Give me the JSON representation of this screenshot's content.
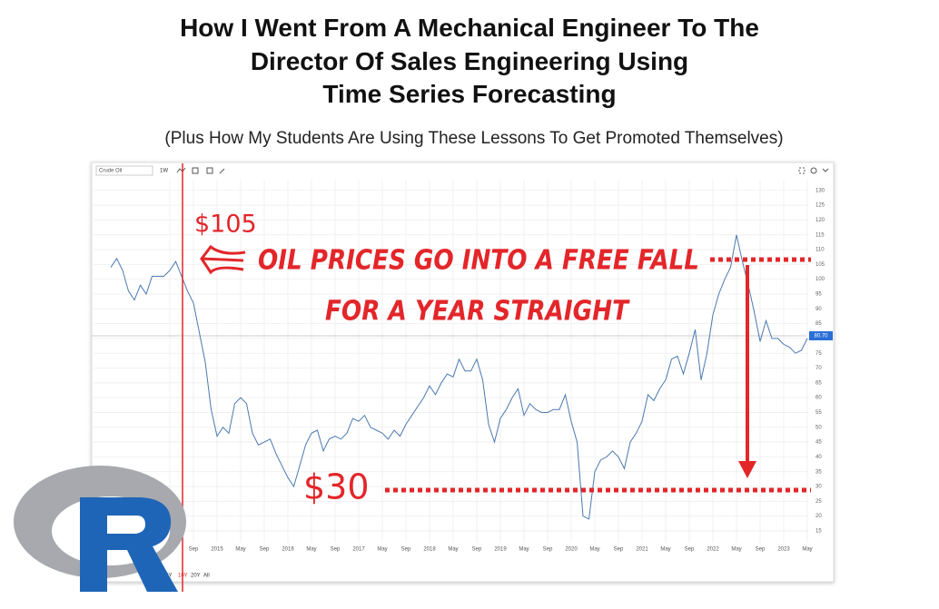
{
  "headline": [
    "How I Went From A Mechanical Engineer To The",
    "Director Of Sales Engineering Using",
    "Time Series Forecasting"
  ],
  "subheadline": "(Plus How My Students Are Using These Lessons To Get Promoted Themselves)",
  "chart_data": {
    "type": "line",
    "toolbar": {
      "interval": "1W"
    },
    "x": [
      "2013-07",
      "2013-08",
      "2013-09",
      "2013-10",
      "2013-11",
      "2013-12",
      "2014-01",
      "2014-02",
      "2014-03",
      "2014-04",
      "2014-05",
      "2014-06",
      "2014-07",
      "2014-08",
      "2014-09",
      "2014-10",
      "2014-11",
      "2014-12",
      "2015-01",
      "2015-02",
      "2015-03",
      "2015-04",
      "2015-05",
      "2015-06",
      "2015-07",
      "2015-08",
      "2015-09",
      "2015-10",
      "2015-11",
      "2015-12",
      "2016-01",
      "2016-02",
      "2016-03",
      "2016-04",
      "2016-05",
      "2016-06",
      "2016-07",
      "2016-08",
      "2016-09",
      "2016-10",
      "2016-11",
      "2016-12",
      "2017-01",
      "2017-02",
      "2017-03",
      "2017-04",
      "2017-05",
      "2017-06",
      "2017-07",
      "2017-08",
      "2017-09",
      "2017-10",
      "2017-11",
      "2017-12",
      "2018-01",
      "2018-02",
      "2018-03",
      "2018-04",
      "2018-05",
      "2018-06",
      "2018-07",
      "2018-08",
      "2018-09",
      "2018-10",
      "2018-11",
      "2018-12",
      "2019-01",
      "2019-02",
      "2019-03",
      "2019-04",
      "2019-05",
      "2019-06",
      "2019-07",
      "2019-08",
      "2019-09",
      "2019-10",
      "2019-11",
      "2019-12",
      "2020-01",
      "2020-02",
      "2020-03",
      "2020-04",
      "2020-05",
      "2020-06",
      "2020-07",
      "2020-08",
      "2020-09",
      "2020-10",
      "2020-11",
      "2020-12",
      "2021-01",
      "2021-02",
      "2021-03",
      "2021-04",
      "2021-05",
      "2021-06",
      "2021-07",
      "2021-08",
      "2021-09",
      "2021-10",
      "2021-11",
      "2021-12",
      "2022-01",
      "2022-02",
      "2022-03",
      "2022-04",
      "2022-05",
      "2022-06",
      "2022-07",
      "2022-08",
      "2022-09",
      "2022-10",
      "2022-11",
      "2022-12",
      "2023-01",
      "2023-02",
      "2023-03",
      "2023-04",
      "2023-05"
    ],
    "series": [
      {
        "name": "Crude Oil",
        "color": "#4a78b0",
        "values": [
          104,
          107,
          103,
          96,
          93,
          98,
          95,
          101,
          101,
          101,
          103,
          106,
          101,
          96,
          92,
          82,
          72,
          56,
          47,
          50,
          48,
          58,
          60,
          58,
          48,
          44,
          45,
          46,
          41,
          37,
          33,
          30,
          37,
          44,
          48,
          49,
          42,
          46,
          47,
          46,
          48,
          53,
          52,
          54,
          50,
          49,
          48,
          46,
          49,
          47,
          51,
          54,
          57,
          60,
          64,
          61,
          65,
          68,
          67,
          73,
          69,
          69,
          73,
          66,
          51,
          45,
          53,
          56,
          60,
          63,
          54,
          58,
          56,
          55,
          55,
          56,
          56,
          61,
          52,
          45,
          20,
          19,
          35,
          39,
          40,
          42,
          40,
          36,
          45,
          48,
          52,
          61,
          59,
          63,
          66,
          73,
          74,
          68,
          75,
          83,
          66,
          75,
          88,
          95,
          100,
          104,
          115,
          106,
          98,
          89,
          79,
          86,
          80,
          80,
          78,
          77,
          75,
          76,
          80
        ]
      }
    ],
    "last_value_label": "80.70",
    "xlim": [
      "2013-04",
      "2023-05"
    ],
    "xticks": [
      {
        "value": "2014-05",
        "label": "May"
      },
      {
        "value": "2014-09",
        "label": "Sep"
      },
      {
        "value": "2015-01",
        "label": "2015"
      },
      {
        "value": "2015-05",
        "label": "May"
      },
      {
        "value": "2015-09",
        "label": "Sep"
      },
      {
        "value": "2016-01",
        "label": "2016"
      },
      {
        "value": "2016-05",
        "label": "May"
      },
      {
        "value": "2016-09",
        "label": "Sep"
      },
      {
        "value": "2017-01",
        "label": "2017"
      },
      {
        "value": "2017-05",
        "label": "May"
      },
      {
        "value": "2017-09",
        "label": "Sep"
      },
      {
        "value": "2018-01",
        "label": "2018"
      },
      {
        "value": "2018-05",
        "label": "May"
      },
      {
        "value": "2018-09",
        "label": "Sep"
      },
      {
        "value": "2019-01",
        "label": "2019"
      },
      {
        "value": "2019-05",
        "label": "May"
      },
      {
        "value": "2019-09",
        "label": "Sep"
      },
      {
        "value": "2020-01",
        "label": "2020"
      },
      {
        "value": "2020-05",
        "label": "May"
      },
      {
        "value": "2020-09",
        "label": "Sep"
      },
      {
        "value": "2021-01",
        "label": "2021"
      },
      {
        "value": "2021-05",
        "label": "May"
      },
      {
        "value": "2021-09",
        "label": "Sep"
      },
      {
        "value": "2022-01",
        "label": "2022"
      },
      {
        "value": "2022-05",
        "label": "May"
      },
      {
        "value": "2022-09",
        "label": "Sep"
      },
      {
        "value": "2023-01",
        "label": "2023"
      },
      {
        "value": "2023-05",
        "label": "May"
      }
    ],
    "ylim": [
      11,
      133
    ],
    "yticks": [
      15,
      20,
      25,
      30,
      35,
      40,
      45,
      50,
      55,
      60,
      65,
      70,
      75,
      80,
      85,
      90,
      95,
      100,
      105,
      110,
      115,
      120,
      125,
      130
    ],
    "grid": true,
    "range_buttons": [
      "5Y",
      "10Y",
      "20Y",
      "All"
    ],
    "annotations": {
      "high": "$105",
      "headline_1": "Oil Prices Go into A Free Fall",
      "headline_2": "For A Year Straight",
      "low": "$30"
    }
  }
}
